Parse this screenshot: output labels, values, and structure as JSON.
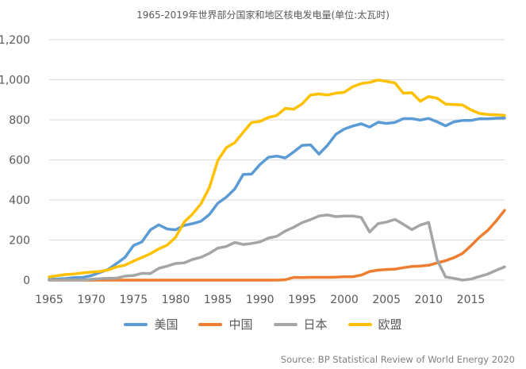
{
  "chart_data": {
    "type": "line",
    "title": "1965-2019年世界部分国家和地区核电发电量(单位:太瓦时)",
    "xlabel": "",
    "ylabel": "",
    "ylim": [
      0,
      1200
    ],
    "xlim": [
      1965,
      2019
    ],
    "yticks": [
      "0",
      "200",
      "400",
      "600",
      "800",
      "1,000",
      "1,200"
    ],
    "xticks": [
      "1965",
      "1970",
      "1975",
      "1980",
      "1985",
      "1990",
      "1995",
      "2000",
      "2005",
      "2010",
      "2015"
    ],
    "grid": true,
    "legend": "bottom",
    "x": [
      1965,
      1966,
      1967,
      1968,
      1969,
      1970,
      1971,
      1972,
      1973,
      1974,
      1975,
      1976,
      1977,
      1978,
      1979,
      1980,
      1981,
      1982,
      1983,
      1984,
      1985,
      1986,
      1987,
      1988,
      1989,
      1990,
      1991,
      1992,
      1993,
      1994,
      1995,
      1996,
      1997,
      1998,
      1999,
      2000,
      2001,
      2002,
      2003,
      2004,
      2005,
      2006,
      2007,
      2008,
      2009,
      2010,
      2011,
      2012,
      2013,
      2014,
      2015,
      2016,
      2017,
      2018,
      2019
    ],
    "series": [
      {
        "name": "美国",
        "color": "#5b9bd5",
        "values": [
          4,
          6,
          8,
          13,
          14,
          22,
          38,
          54,
          83,
          114,
          173,
          191,
          251,
          276,
          255,
          251,
          273,
          282,
          294,
          328,
          384,
          414,
          455,
          527,
          529,
          577,
          613,
          619,
          610,
          640,
          673,
          675,
          629,
          673,
          728,
          754,
          769,
          780,
          764,
          788,
          782,
          787,
          806,
          806,
          799,
          807,
          790,
          770,
          790,
          797,
          797,
          805,
          805,
          808,
          809
        ]
      },
      {
        "name": "中国",
        "color": "#ed7d31",
        "values": [
          0,
          0,
          0,
          0,
          0,
          0,
          0,
          0,
          0,
          0,
          0,
          0,
          0,
          0,
          0,
          0,
          0,
          0,
          0,
          0,
          0,
          0,
          0,
          0,
          0,
          0,
          0,
          0,
          2,
          14,
          13,
          14,
          14,
          14,
          15,
          17,
          17,
          25,
          43,
          50,
          53,
          55,
          62,
          68,
          70,
          74,
          86,
          97,
          112,
          133,
          171,
          213,
          248,
          295,
          348
        ]
      },
      {
        "name": "日本",
        "color": "#a5a5a5",
        "values": [
          0,
          1,
          1,
          1,
          1,
          4,
          7,
          9,
          10,
          20,
          23,
          34,
          33,
          59,
          70,
          83,
          86,
          103,
          114,
          134,
          160,
          168,
          188,
          178,
          183,
          191,
          210,
          219,
          245,
          264,
          287,
          302,
          320,
          325,
          317,
          320,
          320,
          313,
          240,
          282,
          290,
          303,
          279,
          252,
          275,
          288,
          101,
          16,
          9,
          0,
          5,
          18,
          30,
          49,
          66
        ]
      },
      {
        "name": "欧盟",
        "color": "#ffc000",
        "values": [
          16,
          22,
          28,
          31,
          36,
          40,
          43,
          51,
          66,
          75,
          95,
          113,
          132,
          156,
          175,
          214,
          289,
          330,
          381,
          463,
          598,
          661,
          686,
          738,
          787,
          792,
          812,
          822,
          857,
          853,
          880,
          924,
          929,
          924,
          933,
          938,
          965,
          981,
          987,
          999,
          992,
          984,
          933,
          935,
          893,
          916,
          908,
          879,
          876,
          874,
          850,
          832,
          827,
          825,
          822
        ]
      }
    ]
  },
  "source": "Source: BP Statistical Review of World Energy 2020"
}
